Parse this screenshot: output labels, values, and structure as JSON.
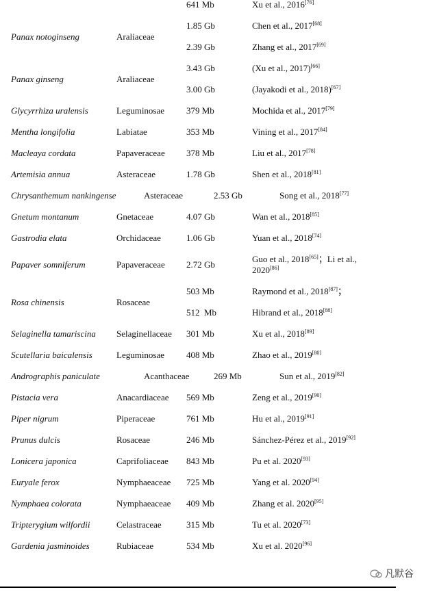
{
  "rows": [
    {
      "species": null,
      "family": null,
      "entries": [
        {
          "size": "641 Mb",
          "refs": [
            {
              "text": "Xu et al., 2016",
              "note": "[76]"
            }
          ]
        }
      ]
    },
    {
      "species": "Panax notoginseng",
      "family": "Araliaceae",
      "entries": [
        {
          "size": "1.85 Gb",
          "refs": [
            {
              "text": "Chen et al., 2017",
              "note": "[68]"
            }
          ]
        },
        {
          "size": "2.39 Gb",
          "refs": [
            {
              "text": "Zhang et al., 2017",
              "note": "[69]"
            }
          ]
        }
      ]
    },
    {
      "species": "Panax ginseng",
      "family": "Araliaceae",
      "entries": [
        {
          "size": "3.43 Gb",
          "refs": [
            {
              "text": "(Xu et al., 2017)",
              "note": "[66]"
            }
          ]
        },
        {
          "size": "3.00 Gb",
          "refs": [
            {
              "text": "(Jayakodi et al., 2018)",
              "note": "[67]"
            }
          ]
        }
      ]
    },
    {
      "species": "Glycyrrhiza uralensis",
      "family": "Leguminosae",
      "entries": [
        {
          "size": "379 Mb",
          "refs": [
            {
              "text": "Mochida et al., 2017",
              "note": "[79]"
            }
          ]
        }
      ]
    },
    {
      "species": "Mentha longifolia",
      "family": "Labiatae",
      "entries": [
        {
          "size": "353 Mb",
          "refs": [
            {
              "text": "Vining et al., 2017",
              "note": "[84]"
            }
          ]
        }
      ]
    },
    {
      "species": "Macleaya cordata",
      "family": "Papaveraceae",
      "entries": [
        {
          "size": "378 Mb",
          "refs": [
            {
              "text": "Liu et al., 2017",
              "note": "[78]"
            }
          ]
        }
      ]
    },
    {
      "species": "Artemisia annua",
      "family": "Asteraceae",
      "entries": [
        {
          "size": "1.78 Gb",
          "refs": [
            {
              "text": "Shen et al., 2018",
              "note": "[81]"
            }
          ]
        }
      ]
    },
    {
      "species": "Chrysanthemum nankingense",
      "family": "Asteraceae",
      "entries": [
        {
          "size": "2.53 Gb",
          "refs": [
            {
              "text": "Song et al., 2018",
              "note": "[77]"
            }
          ]
        }
      ]
    },
    {
      "species": "Gnetum montanum",
      "family": "Gnetaceae",
      "entries": [
        {
          "size": "4.07 Gb",
          "refs": [
            {
              "text": "Wan et al., 2018",
              "note": "[85]"
            }
          ]
        }
      ]
    },
    {
      "species": "Gastrodia elata",
      "family": "Orchidaceae",
      "entries": [
        {
          "size": "1.06 Gb",
          "refs": [
            {
              "text": "Yuan et al., 2018",
              "note": "[74]"
            }
          ]
        }
      ]
    },
    {
      "species": "Papaver somniferum",
      "family": "Papaveraceae",
      "entries": [
        {
          "size": "2.72 Gb",
          "refs": [
            {
              "text": "Guo et al., 2018",
              "note": "[65]"
            },
            {
              "text": "；Li et al., 2020",
              "note": "[86]"
            }
          ]
        }
      ]
    },
    {
      "species": "Rosa chinensis",
      "family": "Rosaceae",
      "entries": [
        {
          "size": "503 Mb",
          "refs": [
            {
              "text": "Raymond et al., 2018",
              "note": "[87]"
            },
            {
              "text": "；"
            }
          ]
        },
        {
          "size": "512  Mb",
          "refs": [
            {
              "text": "Hibrand et al., 2018",
              "note": "[88]"
            }
          ]
        }
      ]
    },
    {
      "species": "Selaginella tamariscina",
      "family": "Selaginellaceae",
      "entries": [
        {
          "size": "301 Mb",
          "refs": [
            {
              "text": "Xu et al., 2018",
              "note": "[89]"
            }
          ]
        }
      ]
    },
    {
      "species": "Scutellaria baicalensis",
      "family": "Leguminosae",
      "entries": [
        {
          "size": "408 Mb",
          "refs": [
            {
              "text": "Zhao et al., 2019",
              "note": "[80]"
            }
          ]
        }
      ]
    },
    {
      "species": "Andrographis paniculate",
      "family": "Acanthaceae",
      "entries": [
        {
          "size": "269 Mb",
          "refs": [
            {
              "text": "Sun et al., 2019",
              "note": "[82]"
            }
          ]
        }
      ]
    },
    {
      "species": "Pistacia vera",
      "family": "Anacardiaceae",
      "entries": [
        {
          "size": "569 Mb",
          "refs": [
            {
              "text": "Zeng et al., 2019",
              "note": "[90]"
            }
          ]
        }
      ]
    },
    {
      "species": "Piper nigrum",
      "family": "Piperaceae",
      "entries": [
        {
          "size": "761 Mb",
          "refs": [
            {
              "text": "Hu et al., 2019",
              "note": "[91]"
            }
          ]
        }
      ]
    },
    {
      "species": "Prunus dulcis",
      "family": "Rosaceae",
      "entries": [
        {
          "size": "246 Mb",
          "refs": [
            {
              "text": "Sánchez-Pérez et al., 2019",
              "note": "[92]"
            }
          ]
        }
      ]
    },
    {
      "species": "Lonicera japonica",
      "family": "Caprifoliaceae",
      "entries": [
        {
          "size": "843 Mb",
          "refs": [
            {
              "text": "Pu et al. 2020",
              "note": "[93]"
            }
          ]
        }
      ]
    },
    {
      "species": "Euryale ferox",
      "family": "Nymphaeaceae",
      "entries": [
        {
          "size": "725 Mb",
          "refs": [
            {
              "text": "Yang et al. 2020",
              "note": "[94]"
            }
          ]
        }
      ]
    },
    {
      "species": "Nymphaea colorata",
      "family": "Nymphaeaceae",
      "entries": [
        {
          "size": "409 Mb",
          "refs": [
            {
              "text": "Zhang et al. 2020",
              "note": "[95]"
            }
          ]
        }
      ]
    },
    {
      "species": "Tripterygium wilfordii",
      "family": "Celastraceae",
      "entries": [
        {
          "size": "315 Mb",
          "refs": [
            {
              "text": "Tu et al. 2020",
              "note": "[73]"
            }
          ]
        }
      ]
    },
    {
      "species": "Gardenia jasminoides",
      "family": "Rubiaceae",
      "entries": [
        {
          "size": "534 Mb",
          "refs": [
            {
              "text": "Xu et al. 2020",
              "note": "[96]"
            }
          ]
        }
      ]
    }
  ],
  "watermark": "凡默谷"
}
